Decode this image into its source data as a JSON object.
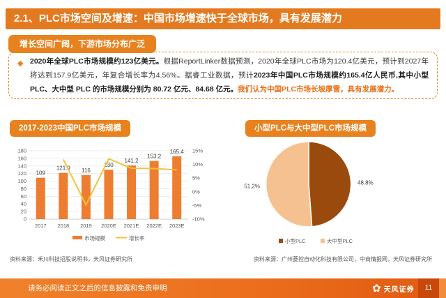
{
  "page": {
    "title": "2.1、PLC市场空间及增速：中国市场增速快于全球市场，具有发展潜力",
    "subtitle": "增长空间广阔，下游市场分布广泛",
    "page_number": "11"
  },
  "summary": {
    "bullet_icon": "◆",
    "segments": [
      {
        "text": "2020年全球PLC市场规模约123亿美元。",
        "style": "bold"
      },
      {
        "text": "根据ReportLinker数据预测，2020年全球PLC市场为120.4亿美元，预计到2027年将达到157.9亿美元，年复合增长率为4.56%。据睿工业数据，预计",
        "style": "normal"
      },
      {
        "text": "2023年中国PLC市场规模约165.4亿人民币,其中小型 PLC、大中型 PLC 的市场规模分别为 80.72 亿元、84.68 亿元。",
        "style": "bold"
      },
      {
        "text": "我们认为中国PLC市场长坡厚雪，具有发展潜力。",
        "style": "bold-accent"
      }
    ]
  },
  "chart_data": [
    {
      "type": "bar",
      "title": "2017-2023中国PLC市场规模",
      "categories": [
        "2017",
        "2018",
        "2019",
        "2020E",
        "2021E",
        "2022E",
        "2023E"
      ],
      "series": [
        {
          "name": "市场规模",
          "type": "bar",
          "values": [
            109,
            121.9,
            116,
            130,
            141.2,
            153.2,
            165.4
          ],
          "labels": [
            "109",
            "121.9",
            "116",
            "130",
            "141.2",
            "153.2",
            "165.4"
          ]
        },
        {
          "name": "增长率",
          "type": "line",
          "values": [
            null,
            11.8,
            -4.8,
            12.1,
            8.6,
            8.5,
            8.0
          ]
        }
      ],
      "left_axis": {
        "min": 0,
        "max": 180,
        "step": 20
      },
      "right_axis": {
        "min": -10,
        "max": 15,
        "step": 5,
        "suffix": "%"
      },
      "legend_position": "bottom",
      "grid": true
    },
    {
      "type": "pie",
      "title": "小型PLC与大中型PLC市场规模",
      "slices": [
        {
          "label": "小型PLC",
          "value": 48.8,
          "display": "48.8%",
          "color": "#9A4A0D"
        },
        {
          "label": "大中型PLC",
          "value": 51.2,
          "display": "51.2%",
          "color": "#F6C190"
        }
      ],
      "legend_position": "bottom"
    }
  ],
  "sources": {
    "left": "资料来源：禾川科技招股说明书，天风证券研究所",
    "right": "资料来源：广州菱控自动化科技有限公司，中商情报网，天风证券研究所"
  },
  "footer": {
    "disclaimer": "请务必阅读正文之后的信息披露和免责申明",
    "brand": "天风证券",
    "logo_glyph": "✿"
  },
  "colors": {
    "orange_main": "#E47A1F",
    "pill_orange": "#E8821E",
    "bar": "#ED7D31",
    "line": "#F2C23E",
    "accent_text": "#E87017",
    "pie_dark": "#9A4A0D",
    "pie_light": "#F6C190",
    "footer_from": "#F0812A",
    "footer_to": "#E05A10"
  }
}
